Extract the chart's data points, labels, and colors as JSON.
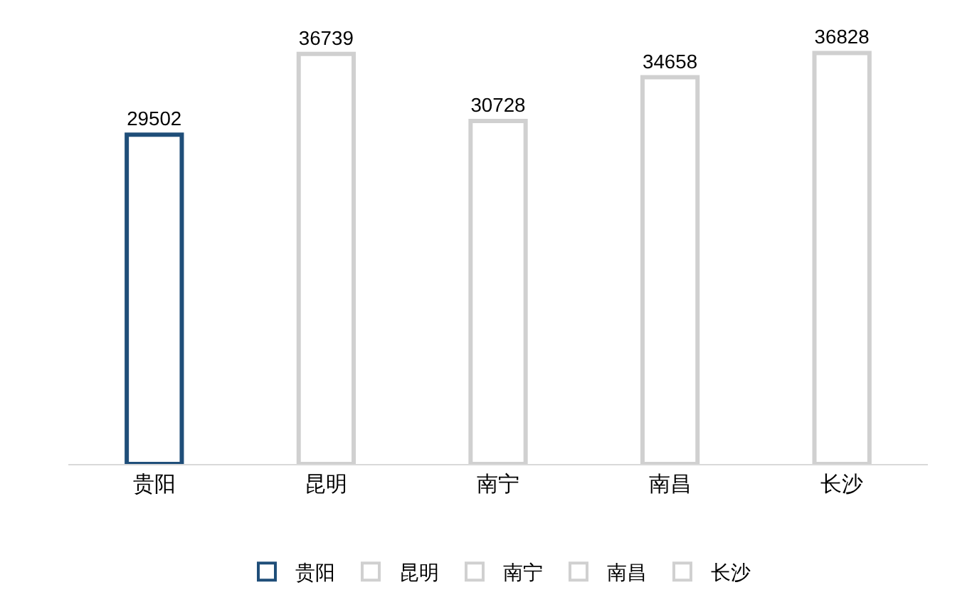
{
  "chart_data": {
    "type": "bar",
    "categories": [
      "贵阳",
      "昆明",
      "南宁",
      "南昌",
      "长沙"
    ],
    "series": [
      {
        "name": "贵阳",
        "color": "#1f4e79",
        "values": [
          29502,
          null,
          null,
          null,
          null
        ]
      },
      {
        "name": "昆明",
        "color": "#d0d0d0",
        "values": [
          null,
          36739,
          null,
          null,
          null
        ]
      },
      {
        "name": "南宁",
        "color": "#d0d0d0",
        "values": [
          null,
          null,
          30728,
          null,
          null
        ]
      },
      {
        "name": "南昌",
        "color": "#d0d0d0",
        "values": [
          null,
          null,
          null,
          34658,
          null
        ]
      },
      {
        "name": "长沙",
        "color": "#d0d0d0",
        "values": [
          null,
          null,
          null,
          null,
          36828
        ]
      }
    ],
    "data_labels": true,
    "legend": "bottom",
    "grid": false,
    "tick_labels": "x"
  }
}
